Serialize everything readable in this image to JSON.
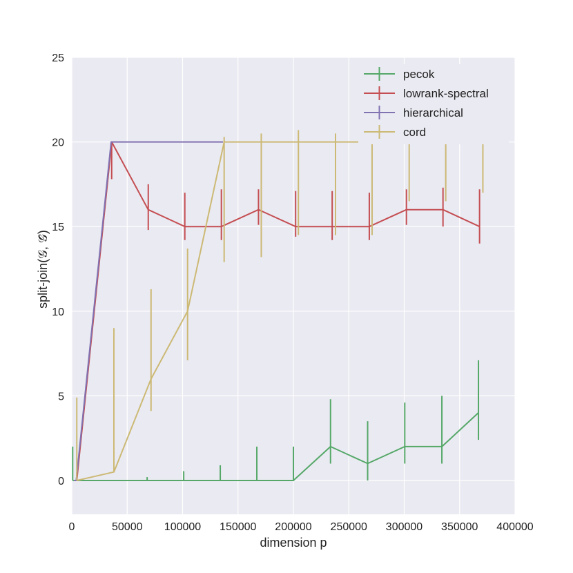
{
  "chart_data": {
    "type": "line",
    "xlabel": "dimension p",
    "ylabel": "split-join(𝒢, 𝒢̂)",
    "xlim": [
      0,
      400000
    ],
    "ylim": [
      -2,
      25
    ],
    "xticks": [
      0,
      50000,
      100000,
      150000,
      200000,
      250000,
      300000,
      350000,
      400000
    ],
    "yticks": [
      0,
      5,
      10,
      15,
      20,
      25
    ],
    "grid": true,
    "legend_position": "top-right",
    "series": [
      {
        "name": "pecok",
        "color": "#55a868",
        "x": [
          800,
          3500,
          35000,
          68000,
          101000,
          134000,
          167000,
          200000,
          233500,
          267000,
          300500,
          334000,
          367000
        ],
        "y": [
          0,
          0,
          0,
          0,
          0,
          0,
          0,
          0,
          2,
          1,
          2,
          2,
          4
        ],
        "err_low": [
          0,
          0,
          0,
          0,
          0,
          0,
          0,
          0,
          1,
          0,
          1,
          1,
          2.4
        ],
        "err_high": [
          2,
          0,
          0,
          0.2,
          0.55,
          0.9,
          2,
          2,
          4.8,
          3.5,
          4.6,
          5,
          7.1
        ]
      },
      {
        "name": "lowrank-spectral",
        "color": "#c44e52",
        "x": [
          2500,
          4500,
          36000,
          69000,
          102000,
          135000,
          168500,
          202000,
          235000,
          268500,
          302000,
          335000,
          368000
        ],
        "y": [
          0,
          0,
          20,
          16,
          15,
          15,
          16,
          15,
          15,
          15,
          16,
          16,
          15
        ],
        "err_low": [
          0,
          0,
          17.8,
          14.8,
          14.2,
          14.2,
          15.1,
          14.4,
          14.2,
          14.2,
          15.1,
          15,
          14
        ],
        "err_high": [
          0,
          0.5,
          20,
          17.5,
          17,
          17.2,
          17.2,
          17.1,
          17.1,
          17,
          17.2,
          17.3,
          17.2
        ]
      },
      {
        "name": "hierarchical",
        "color": "#8172b2",
        "x": [
          2000,
          4000,
          35500,
          70000,
          103000,
          136500
        ],
        "y": [
          0,
          0,
          20,
          20,
          20,
          20
        ]
      },
      {
        "name": "cord",
        "color": "#ccb974",
        "x": [
          4500,
          38000,
          71500,
          104500,
          137500,
          171000,
          204500,
          238000,
          271000,
          304500,
          337500,
          371000
        ],
        "y": [
          0,
          0.5,
          6,
          10,
          20,
          20,
          20,
          20,
          20,
          20,
          20,
          20
        ],
        "err_low": [
          0,
          0.5,
          4.1,
          7.1,
          12.9,
          13.2,
          14.5,
          14.5,
          14.5,
          16.5,
          16.5,
          17
        ],
        "err_high": [
          4.9,
          9,
          11.3,
          13.7,
          20.3,
          20.5,
          20.7,
          20.5,
          20,
          20,
          20,
          20
        ]
      }
    ]
  }
}
